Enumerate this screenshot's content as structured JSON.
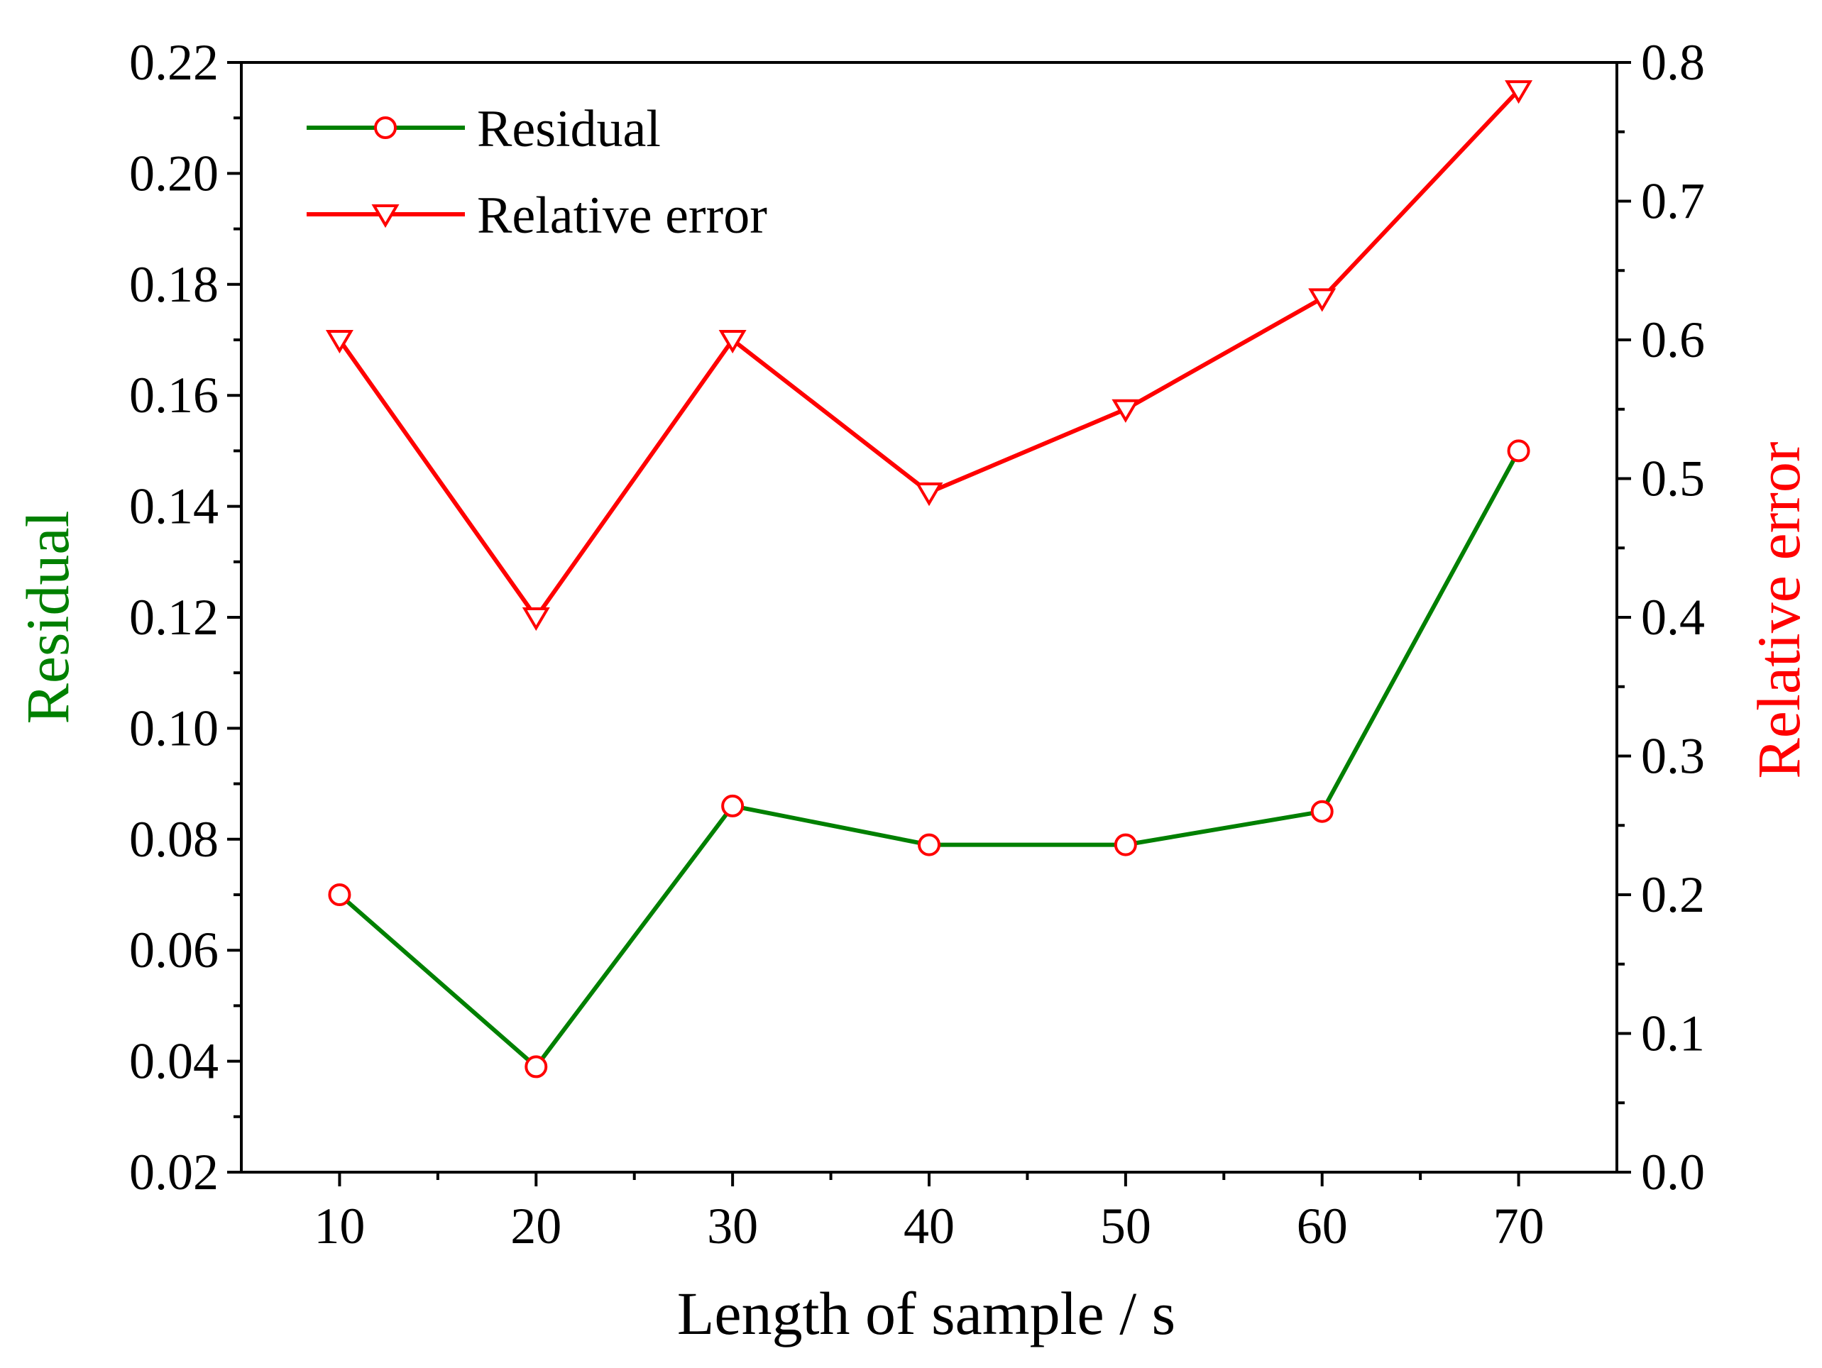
{
  "chart_data": {
    "type": "line",
    "x": [
      10,
      20,
      30,
      40,
      50,
      60,
      70
    ],
    "xlabel": "Length of sample / s",
    "xlim": [
      5,
      75
    ],
    "xticks": [
      10,
      20,
      30,
      40,
      50,
      60,
      70
    ],
    "xtick_labels": [
      "10",
      "20",
      "30",
      "40",
      "50",
      "60",
      "70"
    ],
    "y_left": {
      "label": "Residual",
      "ylim": [
        0.02,
        0.22
      ],
      "ticks": [
        0.02,
        0.04,
        0.06,
        0.08,
        0.1,
        0.12,
        0.14,
        0.16,
        0.18,
        0.2,
        0.22
      ],
      "tick_labels": [
        "0.02",
        "0.04",
        "0.06",
        "0.08",
        "0.10",
        "0.12",
        "0.14",
        "0.16",
        "0.18",
        "0.20",
        "0.22"
      ]
    },
    "y_right": {
      "label": "Relative error",
      "ylim": [
        0.0,
        0.8
      ],
      "ticks": [
        0.0,
        0.1,
        0.2,
        0.3,
        0.4,
        0.5,
        0.6,
        0.7,
        0.8
      ],
      "tick_labels": [
        "0.0",
        "0.1",
        "0.2",
        "0.3",
        "0.4",
        "0.5",
        "0.6",
        "0.7",
        "0.8"
      ]
    },
    "series": [
      {
        "name": "Residual",
        "axis": "left",
        "marker": "circle",
        "line_color": "#008000",
        "marker_color": "#ff0000",
        "values": [
          0.07,
          0.039,
          0.086,
          0.079,
          0.079,
          0.085,
          0.15
        ]
      },
      {
        "name": "Relative error",
        "axis": "right",
        "marker": "triangle-down",
        "line_color": "#ff0000",
        "marker_color": "#ff0000",
        "values": [
          0.6,
          0.4,
          0.6,
          0.49,
          0.55,
          0.63,
          0.78
        ]
      }
    ],
    "legend": {
      "position": "top-left",
      "entries": [
        "Residual",
        "Relative error"
      ]
    },
    "grid": false,
    "colors": {
      "left_axis_title": "#008000",
      "right_axis_title": "#ff0000",
      "axis": "#000000"
    }
  }
}
